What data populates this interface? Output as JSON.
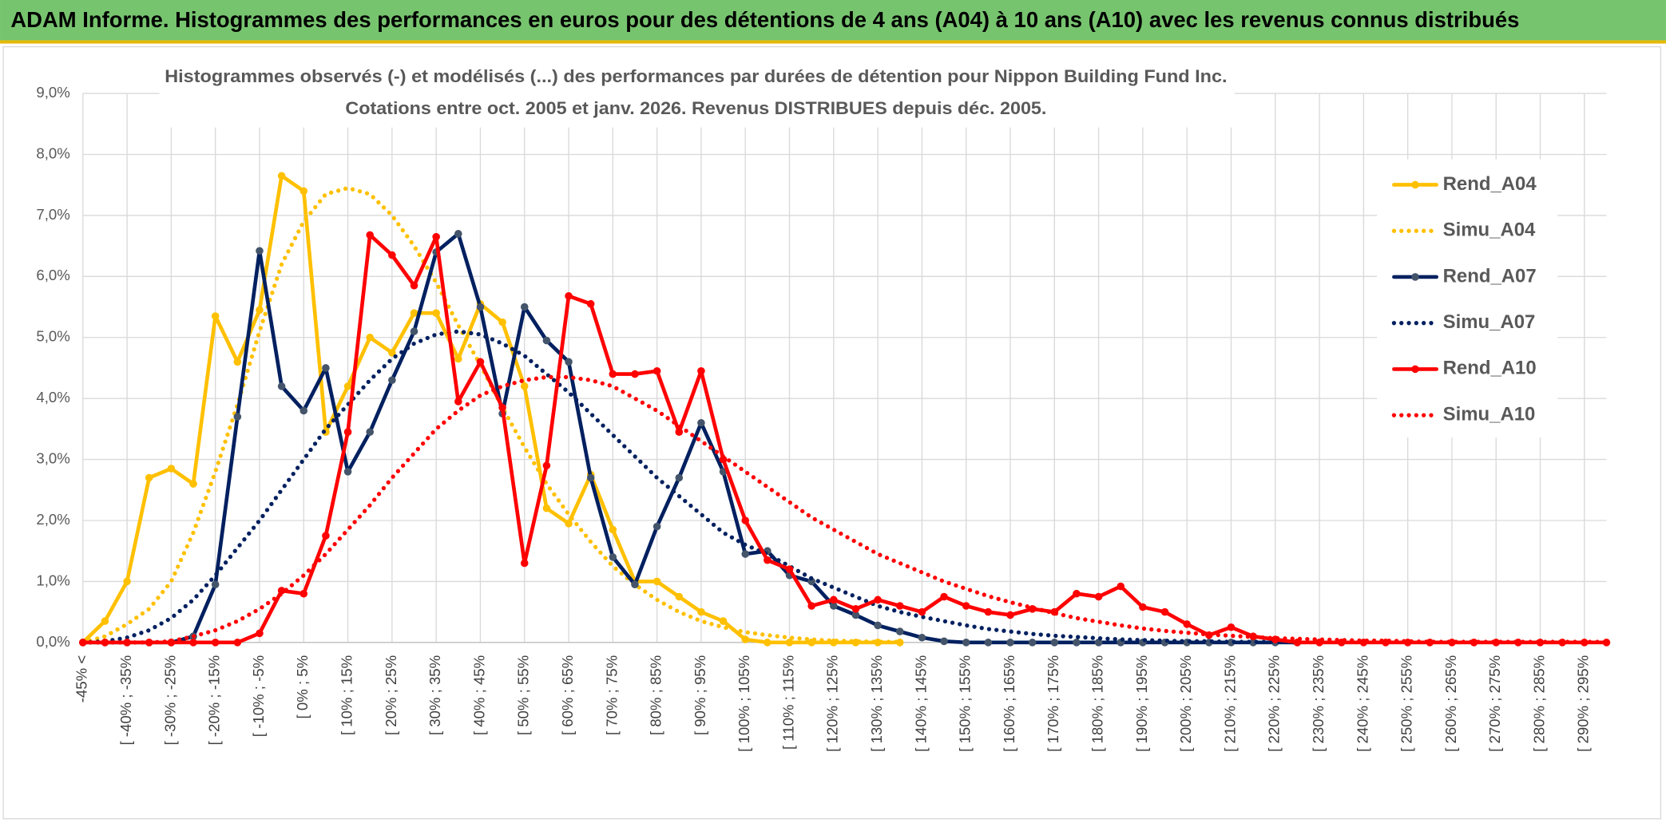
{
  "chart_data": {
    "type": "line",
    "header": "ADAM Informe. Histogrammes des performances en euros pour des détentions de 4 ans (A04) à 10 ans (A10) avec les revenus connus distribués",
    "title": "Histogrammes observés (-) et modélisés (...) des performances par durées de détention pour Nippon Building Fund Inc.",
    "subtitle": "Cotations entre oct. 2005 et janv. 2026. Revenus DISTRIBUES depuis déc. 2005.",
    "categories": [
      "-45% <",
      null,
      "[ -40% ; -35%",
      null,
      "[ -30% ; -25%",
      null,
      "[ -20% ; -15%",
      null,
      "[ -10% ; -5%",
      null,
      "[ 0% ; 5%",
      null,
      "[ 10% ; 15%",
      null,
      "[ 20% ; 25%",
      null,
      "[ 30% ; 35%",
      null,
      "[ 40% ; 45%",
      null,
      "[ 50% ; 55%",
      null,
      "[ 60% ; 65%",
      null,
      "[ 70% ; 75%",
      null,
      "[ 80% ; 85%",
      null,
      "[ 90% ; 95%",
      null,
      "[ 100% ; 105%",
      null,
      "[ 110% ; 115%",
      null,
      "[ 120% ; 125%",
      null,
      "[ 130% ; 135%",
      null,
      "[ 140% ; 145%",
      null,
      "[ 150% ; 155%",
      null,
      "[ 160% ; 165%",
      null,
      "[ 170% ; 175%",
      null,
      "[ 180% ; 185%",
      null,
      "[ 190% ; 195%",
      null,
      "[ 200% ; 205%",
      null,
      "[ 210% ; 215%",
      null,
      "[ 220% ; 225%",
      null,
      "[ 230% ; 235%",
      null,
      "[ 240% ; 245%",
      null,
      "[ 250% ; 255%",
      null,
      "[ 260% ; 265%",
      null,
      "[ 270% ; 275%",
      null,
      "[ 280% ; 285%",
      null,
      "[ 290% ; 295%",
      null
    ],
    "series": [
      {
        "name": "Rend_A04",
        "color": "#ffc000",
        "style": "solid",
        "values": [
          0,
          0.35,
          1.0,
          2.7,
          2.85,
          2.6,
          5.35,
          4.6,
          5.45,
          7.65,
          7.4,
          3.45,
          4.2,
          5.0,
          4.75,
          5.4,
          5.4,
          4.65,
          5.55,
          5.25,
          4.2,
          2.2,
          1.95,
          2.75,
          1.85,
          1.0,
          1.0,
          0.75,
          0.5,
          0.35,
          0.05,
          0,
          0,
          0,
          0,
          0,
          0,
          0,
          null,
          null,
          null,
          null,
          null,
          null,
          null,
          null,
          null,
          null,
          null,
          null,
          null,
          null,
          null,
          null,
          null,
          null,
          null,
          null,
          null,
          null,
          null,
          null,
          null,
          null,
          null,
          null,
          null,
          null,
          null,
          null
        ]
      },
      {
        "name": "Simu_A04",
        "color": "#ffc000",
        "style": "dotted",
        "values": [
          0,
          0.1,
          0.3,
          0.55,
          1.0,
          1.8,
          2.8,
          3.9,
          5.1,
          6.2,
          6.9,
          7.35,
          7.45,
          7.35,
          7.0,
          6.5,
          5.9,
          5.2,
          4.55,
          3.85,
          3.2,
          2.6,
          2.1,
          1.65,
          1.25,
          0.95,
          0.7,
          0.5,
          0.35,
          0.25,
          0.17,
          0.12,
          0.08,
          0.05,
          0.03,
          0.02,
          0.01,
          0.01,
          null,
          null,
          null,
          null,
          null,
          null,
          null,
          null,
          null,
          null,
          null,
          null,
          null,
          null,
          null,
          null,
          null,
          null,
          null,
          null,
          null,
          null,
          null,
          null,
          null,
          null,
          null,
          null,
          null,
          null,
          null,
          null
        ]
      },
      {
        "name": "Rend_A07",
        "color": "#002060",
        "style": "solid",
        "values": [
          0,
          0,
          0,
          0,
          0,
          0.1,
          0.95,
          3.7,
          6.42,
          4.2,
          3.8,
          4.5,
          2.8,
          3.45,
          4.3,
          5.1,
          6.4,
          6.7,
          5.5,
          3.75,
          5.5,
          4.95,
          4.6,
          2.7,
          1.4,
          0.95,
          1.9,
          2.7,
          3.6,
          2.8,
          1.45,
          1.5,
          1.1,
          1.0,
          0.6,
          0.45,
          0.28,
          0.18,
          0.08,
          0.02,
          0,
          0,
          0,
          0,
          0,
          0,
          0,
          0,
          0,
          0,
          0,
          0,
          0,
          0,
          0,
          0,
          null,
          null,
          null,
          null,
          null,
          null,
          null,
          null,
          null,
          null,
          null,
          null,
          null,
          null
        ]
      },
      {
        "name": "Simu_A07",
        "color": "#002060",
        "style": "dotted",
        "values": [
          0,
          0.02,
          0.08,
          0.2,
          0.4,
          0.7,
          1.1,
          1.55,
          2.0,
          2.5,
          3.0,
          3.5,
          3.9,
          4.3,
          4.65,
          4.9,
          5.05,
          5.1,
          5.05,
          4.9,
          4.7,
          4.4,
          4.1,
          3.75,
          3.4,
          3.05,
          2.7,
          2.4,
          2.1,
          1.8,
          1.6,
          1.45,
          1.25,
          1.05,
          0.9,
          0.75,
          0.6,
          0.5,
          0.42,
          0.35,
          0.28,
          0.22,
          0.18,
          0.14,
          0.11,
          0.09,
          0.07,
          0.05,
          0.04,
          0.03,
          0.02,
          0.02,
          0.01,
          0.01,
          0.01,
          0,
          null,
          null,
          null,
          null,
          null,
          null,
          null,
          null,
          null,
          null,
          null,
          null,
          null,
          null
        ]
      },
      {
        "name": "Rend_A10",
        "color": "#ff0000",
        "style": "solid",
        "values": [
          0,
          0,
          0,
          0,
          0,
          0,
          0,
          0,
          0.15,
          0.85,
          0.8,
          1.75,
          3.45,
          6.68,
          6.35,
          5.85,
          6.65,
          3.95,
          4.6,
          3.85,
          1.3,
          2.9,
          5.68,
          5.55,
          4.4,
          4.4,
          4.45,
          3.45,
          4.45,
          3.0,
          2.0,
          1.35,
          1.2,
          0.6,
          0.7,
          0.55,
          0.7,
          0.6,
          0.5,
          0.75,
          0.6,
          0.5,
          0.45,
          0.55,
          0.5,
          0.8,
          0.75,
          0.92,
          0.58,
          0.5,
          0.3,
          0.12,
          0.25,
          0.1,
          0.05,
          0,
          0,
          0,
          0,
          0,
          0,
          0,
          0,
          0,
          0,
          0,
          0,
          0,
          0,
          0
        ]
      },
      {
        "name": "Simu_A10",
        "color": "#ff0000",
        "style": "dotted",
        "values": [
          0,
          0,
          0,
          0,
          0.02,
          0.1,
          0.2,
          0.35,
          0.55,
          0.8,
          1.1,
          1.45,
          1.85,
          2.25,
          2.7,
          3.1,
          3.5,
          3.8,
          4.05,
          4.2,
          4.3,
          4.35,
          4.35,
          4.3,
          4.2,
          4.0,
          3.8,
          3.55,
          3.3,
          3.05,
          2.8,
          2.55,
          2.3,
          2.05,
          1.85,
          1.65,
          1.45,
          1.3,
          1.15,
          1.0,
          0.88,
          0.76,
          0.66,
          0.57,
          0.48,
          0.4,
          0.34,
          0.28,
          0.23,
          0.19,
          0.16,
          0.13,
          0.11,
          0.09,
          0.07,
          0.06,
          0.05,
          0.04,
          0.03,
          0.03,
          0.02,
          0.01,
          0.01,
          0.01,
          0.01,
          0.01,
          0.01,
          0.01,
          0.01,
          0.01
        ]
      }
    ],
    "ylim": [
      0,
      9
    ],
    "yticks": [
      {
        "value": 0,
        "label": "0,0%"
      },
      {
        "value": 1,
        "label": "1,0%"
      },
      {
        "value": 2,
        "label": "2,0%"
      },
      {
        "value": 3,
        "label": "3,0%"
      },
      {
        "value": 4,
        "label": "4,0%"
      },
      {
        "value": 5,
        "label": "5,0%"
      },
      {
        "value": 6,
        "label": "6,0%"
      },
      {
        "value": 7,
        "label": "7,0%"
      },
      {
        "value": 8,
        "label": "8,0%"
      },
      {
        "value": 9,
        "label": "9,0%"
      }
    ],
    "grid": true,
    "legend": "right"
  }
}
